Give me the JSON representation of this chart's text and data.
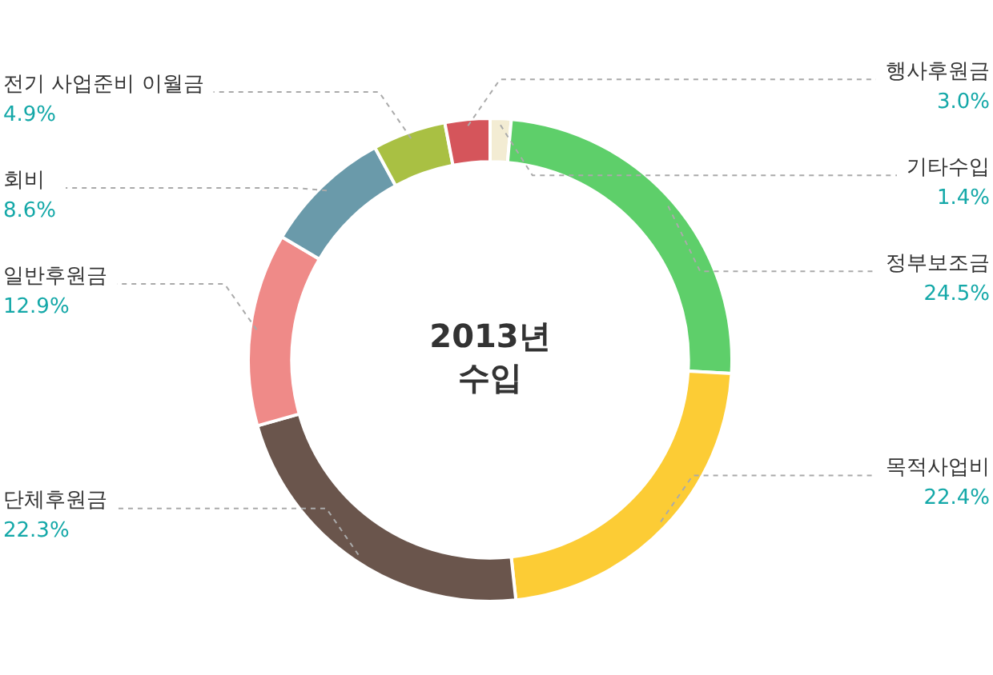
{
  "chart_data": {
    "type": "donut",
    "title": "2013년 수입",
    "categories": [
      "기타수입",
      "정부보조금",
      "목적사업비",
      "단체후원금",
      "일반후원금",
      "회비",
      "전기 사업준비 이월금",
      "행사후원금"
    ],
    "values": [
      1.4,
      24.5,
      22.4,
      22.3,
      12.9,
      8.6,
      4.9,
      3.0
    ],
    "value_labels": [
      "1.4%",
      "24.5%",
      "22.4%",
      "22.3%",
      "12.9%",
      "8.6%",
      "4.9%",
      "3.0%"
    ],
    "colors": [
      "#f3ecd3",
      "#5ecf6a",
      "#fccc35",
      "#6a554c",
      "#ef8a88",
      "#6a9aaa",
      "#a9c043",
      "#d5555b"
    ],
    "legend": false
  }
}
